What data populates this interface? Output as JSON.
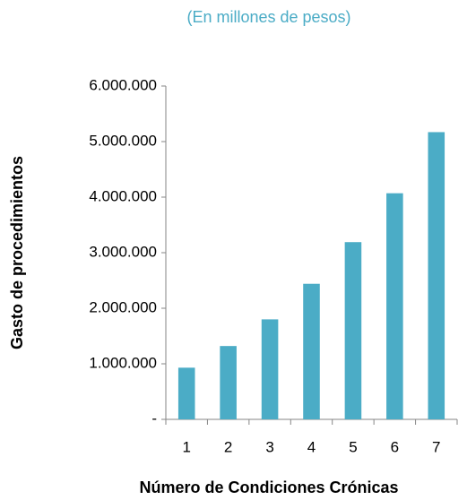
{
  "chart_data": {
    "type": "bar",
    "title": "(En millones de pesos)",
    "x_label": "Número de Condiciones Crónicas",
    "y_label": "Gasto de procedimientos",
    "categories": [
      "1",
      "2",
      "3",
      "4",
      "5",
      "6",
      "7"
    ],
    "values": [
      930000,
      1320000,
      1800000,
      2440000,
      3190000,
      4070000,
      5170000
    ],
    "color": "#4bacc6",
    "ylim": [
      0,
      6000000
    ],
    "yticks": [
      {
        "value": 0,
        "label": "-"
      },
      {
        "value": 1000000,
        "label": "1.000.000"
      },
      {
        "value": 2000000,
        "label": "2.000.000"
      },
      {
        "value": 3000000,
        "label": "3.000.000"
      },
      {
        "value": 4000000,
        "label": "4.000.000"
      },
      {
        "value": 5000000,
        "label": "5.000.000"
      },
      {
        "value": 6000000,
        "label": "6.000.000"
      }
    ],
    "grid": false
  }
}
